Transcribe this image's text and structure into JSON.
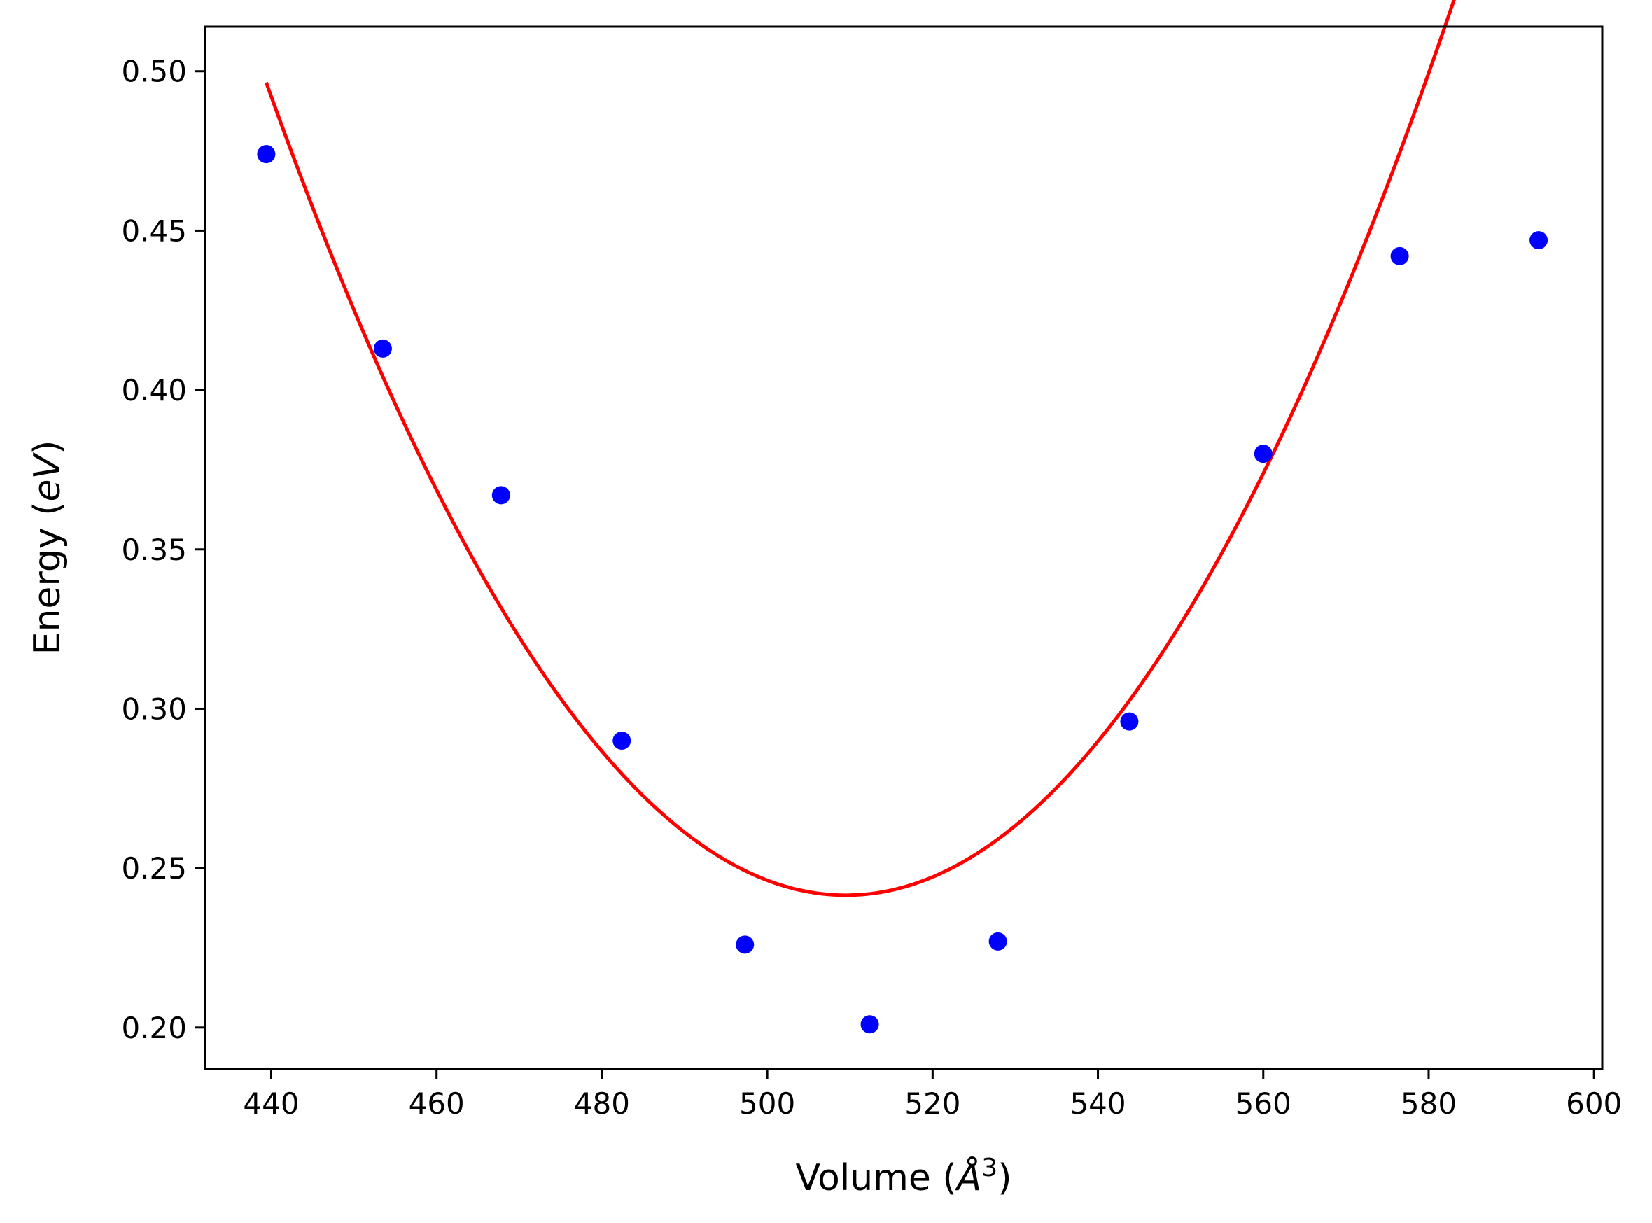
{
  "chart_data": {
    "type": "scatter",
    "xlabel_prefix": "Volume (",
    "xlabel_unit": "Å",
    "xlabel_exp": "3",
    "xlabel_suffix": ")",
    "ylabel_prefix": "Energy (",
    "ylabel_unit": "eV",
    "ylabel_suffix": ")",
    "xlim": [
      432,
      601
    ],
    "ylim": [
      0.187,
      0.514
    ],
    "xticks": [
      440,
      460,
      480,
      500,
      520,
      540,
      560,
      580,
      600
    ],
    "yticks": [
      "0.20",
      "0.25",
      "0.30",
      "0.35",
      "0.40",
      "0.45",
      "0.50"
    ],
    "grid": false,
    "points": {
      "color": "#0000ff",
      "x": [
        439.4,
        453.5,
        467.8,
        482.4,
        497.3,
        512.4,
        527.9,
        543.8,
        560.0,
        576.5,
        593.3
      ],
      "y": [
        0.474,
        0.413,
        0.367,
        0.29,
        0.226,
        0.201,
        0.227,
        0.296,
        0.38,
        0.442,
        0.447
      ]
    },
    "fit": {
      "color": "#ff0000",
      "type": "quadratic",
      "vertex_x": 509.5,
      "vertex_y": 0.2415,
      "a": 5.189e-05,
      "x_range": [
        439.4,
        593.3
      ]
    }
  }
}
